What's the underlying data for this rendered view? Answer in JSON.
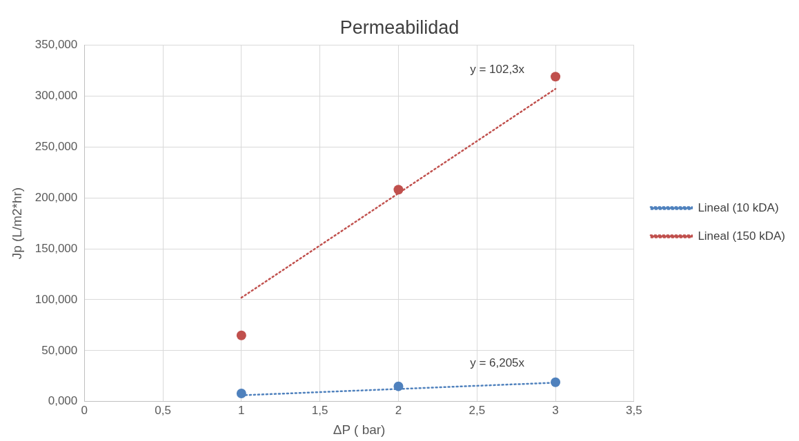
{
  "chart_data": {
    "type": "scatter",
    "title": "Permeabilidad",
    "xlabel": "ΔP ( bar)",
    "ylabel": "Jp (L/m2*hr)",
    "xlim": [
      0,
      3.5
    ],
    "xticks": [
      0,
      {
        "value": 0.5,
        "label": "0,5"
      },
      1,
      {
        "value": 1.5,
        "label": "1,5"
      },
      2,
      {
        "value": 2.5,
        "label": "2,5"
      },
      3,
      {
        "value": 3.5,
        "label": "3,5"
      }
    ],
    "ylim": [
      0,
      350
    ],
    "yticks": [
      {
        "value": 0,
        "label": "0,000"
      },
      {
        "value": 50,
        "label": "50,000"
      },
      {
        "value": 100,
        "label": "100,000"
      },
      {
        "value": 150,
        "label": "150,000"
      },
      {
        "value": 200,
        "label": "200,000"
      },
      {
        "value": 250,
        "label": "250,000"
      },
      {
        "value": 300,
        "label": "300,000"
      },
      {
        "value": 350,
        "label": "350,000"
      }
    ],
    "grid": true,
    "legend": "right",
    "marker": "circle",
    "series": [
      {
        "color": "#4f81bd",
        "x": [
          1,
          2,
          3
        ],
        "values": [
          8,
          15,
          19
        ]
      },
      {
        "color": "#c0504d",
        "x": [
          1,
          2,
          3
        ],
        "values": [
          65,
          208,
          319
        ]
      },
      {
        "type": "line",
        "name": "Lineal (10 kDA)",
        "color": "#4f81bd",
        "line_style": "dotted",
        "marker": "none",
        "x": [
          1,
          3
        ],
        "values": [
          6.2,
          18.6
        ]
      },
      {
        "type": "line",
        "name": "Lineal (150 kDA)",
        "color": "#c0504d",
        "line_style": "dotted",
        "marker": "none",
        "x": [
          1,
          3
        ],
        "values": [
          102,
          307
        ]
      }
    ],
    "annotations": [
      {
        "text": "y = 102,3x",
        "x": 3,
        "y": 307
      },
      {
        "text": "y = 6,205x",
        "x": 3,
        "y": 18.6
      }
    ]
  }
}
